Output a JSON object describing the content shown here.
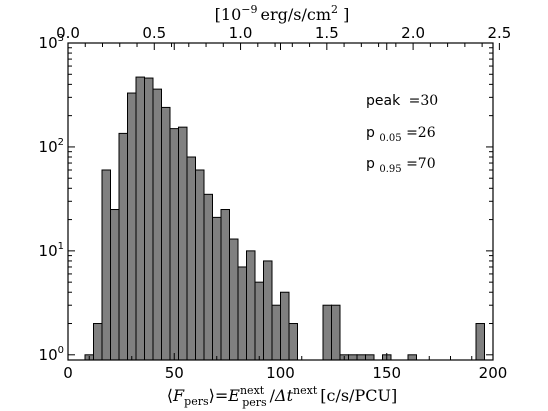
{
  "chart_data": {
    "type": "bar",
    "ylog": true,
    "xlim": [
      0,
      200
    ],
    "ylim_log10": [
      -0.05,
      3.0
    ],
    "bin_width": 4,
    "bars": [
      {
        "x": 8,
        "value": 1
      },
      {
        "x": 12,
        "value": 2
      },
      {
        "x": 16,
        "value": 60
      },
      {
        "x": 20,
        "value": 25
      },
      {
        "x": 24,
        "value": 135
      },
      {
        "x": 28,
        "value": 330
      },
      {
        "x": 32,
        "value": 470
      },
      {
        "x": 36,
        "value": 460
      },
      {
        "x": 40,
        "value": 360
      },
      {
        "x": 44,
        "value": 240
      },
      {
        "x": 48,
        "value": 150
      },
      {
        "x": 52,
        "value": 155
      },
      {
        "x": 56,
        "value": 80
      },
      {
        "x": 60,
        "value": 60
      },
      {
        "x": 64,
        "value": 35
      },
      {
        "x": 68,
        "value": 21
      },
      {
        "x": 72,
        "value": 25
      },
      {
        "x": 76,
        "value": 13
      },
      {
        "x": 80,
        "value": 7
      },
      {
        "x": 84,
        "value": 10
      },
      {
        "x": 88,
        "value": 5
      },
      {
        "x": 92,
        "value": 8
      },
      {
        "x": 96,
        "value": 3
      },
      {
        "x": 100,
        "value": 4
      },
      {
        "x": 104,
        "value": 2
      },
      {
        "x": 120,
        "value": 3
      },
      {
        "x": 124,
        "value": 3
      },
      {
        "x": 128,
        "value": 1
      },
      {
        "x": 132,
        "value": 1
      },
      {
        "x": 136,
        "value": 1
      },
      {
        "x": 140,
        "value": 1
      },
      {
        "x": 148,
        "value": 1
      },
      {
        "x": 160,
        "value": 1
      },
      {
        "x": 192,
        "value": 2
      }
    ],
    "x_ticks": [
      {
        "value": 0,
        "label": "0"
      },
      {
        "value": 50,
        "label": "50"
      },
      {
        "value": 100,
        "label": "100"
      },
      {
        "value": 150,
        "label": "150"
      },
      {
        "value": 200,
        "label": "200"
      }
    ],
    "top_axis": {
      "scale_counts_per_unit": 81.2,
      "ticks": [
        {
          "value": 0.0,
          "label": "0.0"
        },
        {
          "value": 0.5,
          "label": "0.5"
        },
        {
          "value": 1.0,
          "label": "1.0"
        },
        {
          "value": 1.5,
          "label": "1.5"
        },
        {
          "value": 2.0,
          "label": "2.0"
        },
        {
          "value": 2.5,
          "label": "2.5"
        }
      ]
    },
    "y_ticks": [
      {
        "exp": 0,
        "base": "10",
        "sup": "0"
      },
      {
        "exp": 1,
        "base": "10",
        "sup": "1"
      },
      {
        "exp": 2,
        "base": "10",
        "sup": "2"
      },
      {
        "exp": 3,
        "base": "10",
        "sup": "3"
      }
    ],
    "xlabel": {
      "F": "F",
      "F_sub": "pers",
      "eq": "=",
      "E": "E",
      "E_sup": "next",
      "E_sub": "pers",
      "slash": "/",
      "dt": "Δt",
      "dt_sup": "next",
      "units": "[c/s/PCU]"
    },
    "top_xlabel": {
      "prefix": "[10",
      "exp": "−9",
      "mid": "erg/s/cm",
      "sq": "2",
      "suffix": " ]"
    },
    "annotations": {
      "peak_label": "peak",
      "peak_eq": "=30",
      "p05_label": "p",
      "p05_sub": "0.05",
      "p05_eq": "=26",
      "p95_label": "p",
      "p95_sub": "0.95",
      "p95_eq": "=70"
    },
    "colors": {
      "bar_fill": "#808080",
      "bar_edge": "#000000",
      "axis": "#000000"
    }
  }
}
